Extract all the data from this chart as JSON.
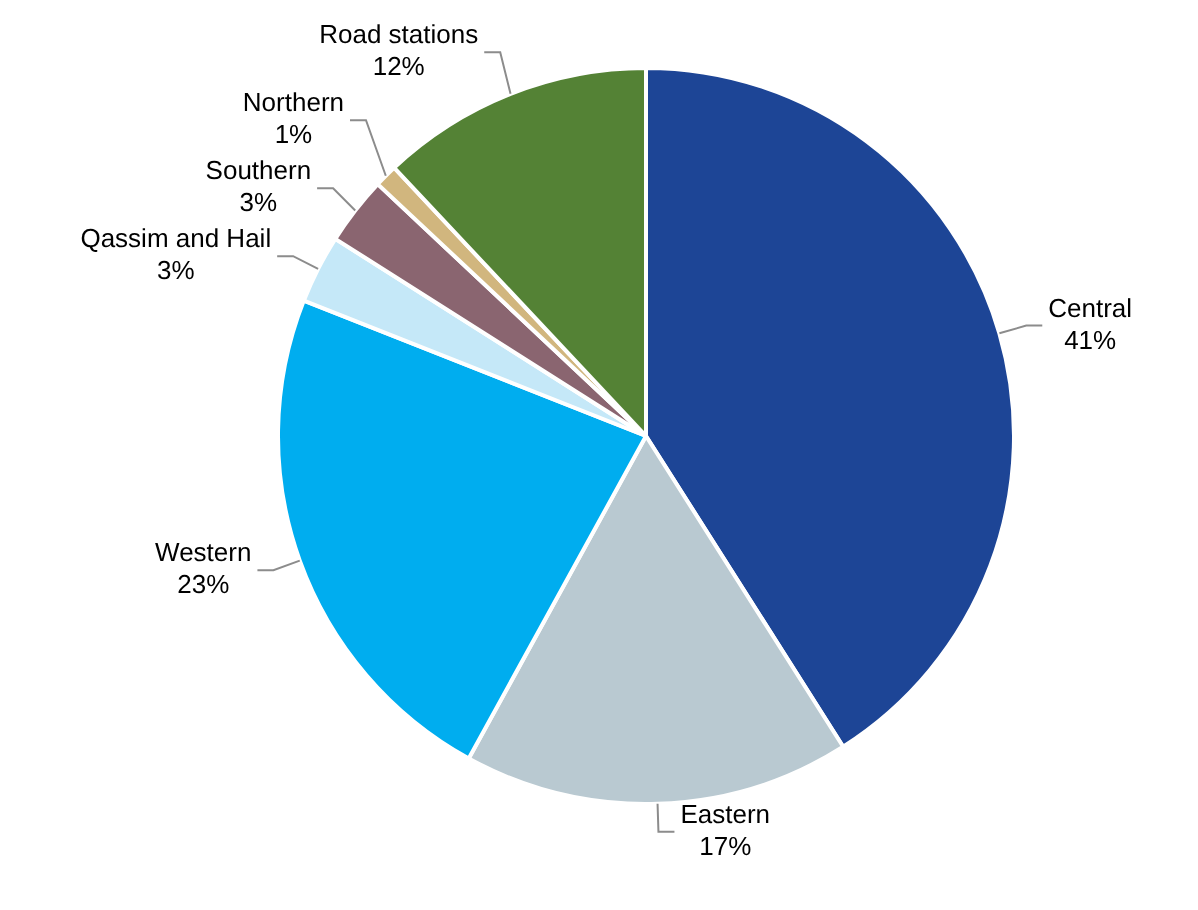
{
  "chart_data": {
    "type": "pie",
    "categories": [
      "Central",
      "Eastern",
      "Western",
      "Qassim and Hail",
      "Southern",
      "Northern",
      "Road stations"
    ],
    "values": [
      41,
      17,
      23,
      3,
      3,
      1,
      12
    ],
    "value_labels": [
      "41%",
      "17%",
      "23%",
      "3%",
      "3%",
      "1%",
      "12%"
    ],
    "colors": [
      "#1d4596",
      "#b9c9d1",
      "#00adef",
      "#c5e8f8",
      "#8a6570",
      "#d1b67e",
      "#548235"
    ],
    "legend": false
  }
}
